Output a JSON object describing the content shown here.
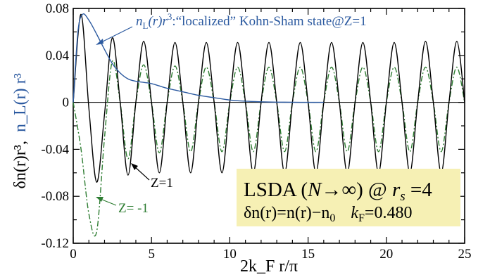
{
  "chart_data": {
    "type": "line",
    "xlabel": "2k_F r/π",
    "ylabel_black": "δn(r)r³,",
    "ylabel_blue": "n_L(r) r³",
    "xlim": [
      0,
      25
    ],
    "ylim": [
      -0.12,
      0.08
    ],
    "x_ticks": [
      0,
      5,
      10,
      15,
      20,
      25
    ],
    "x_tick_labels": [
      "0",
      "5",
      "10",
      "15",
      "20",
      "25"
    ],
    "y_ticks": [
      0.08,
      0.04,
      0,
      -0.04,
      -0.08,
      -0.12
    ],
    "y_tick_labels": [
      "0.08",
      "0.04",
      "0",
      "-0.04",
      "-0.08",
      "-0.12"
    ],
    "grid": false,
    "series": [
      {
        "name": "Z=1",
        "color": "#000000",
        "style": "solid",
        "x": [
          0,
          0.5,
          1,
          1.5,
          2,
          2.5,
          3,
          3.5,
          4,
          4.5,
          5,
          5.5,
          6,
          6.5,
          7,
          7.5,
          8,
          8.5,
          9,
          9.5,
          10,
          10.5,
          11,
          11.5,
          12,
          12.5,
          13,
          13.5,
          14,
          14.5,
          15,
          15.5,
          16,
          16.5,
          17,
          17.5,
          18,
          18.5,
          19,
          19.5,
          20,
          20.5,
          21,
          21.5,
          22,
          22.5,
          23,
          23.5,
          24,
          24.5,
          25
        ],
        "y": [
          0,
          0.075,
          -0.005,
          -0.068,
          -0.01,
          0.055,
          0.0,
          -0.062,
          0.0,
          0.052,
          0.0,
          -0.06,
          0.0,
          0.051,
          0.0,
          -0.06,
          0.0,
          0.051,
          0.0,
          -0.06,
          0.0,
          0.051,
          0.0,
          -0.06,
          0.0,
          0.051,
          0.0,
          -0.06,
          0.0,
          0.051,
          0.0,
          -0.06,
          0.0,
          0.051,
          0.0,
          -0.06,
          0.0,
          0.051,
          0.0,
          -0.06,
          0.0,
          0.051,
          0.0,
          -0.06,
          0.0,
          0.052,
          0.0,
          -0.06,
          0.0,
          0.052,
          0.0
        ]
      },
      {
        "name": "Z= -1",
        "color": "#2e7d32",
        "style": "dash-dot",
        "x": [
          0,
          0.5,
          1,
          1.5,
          2,
          2.5,
          3,
          3.5,
          4,
          4.5,
          5,
          5.5,
          6,
          6.5,
          7,
          7.5,
          8,
          8.5,
          9,
          9.5,
          10,
          10.5,
          11,
          11.5,
          12,
          12.5,
          13,
          13.5,
          14,
          14.5,
          15,
          15.5,
          16,
          16.5,
          17,
          17.5,
          18,
          18.5,
          19,
          19.5,
          20,
          20.5,
          21,
          21.5,
          22,
          22.5,
          23,
          23.5,
          24,
          24.5,
          25
        ],
        "y": [
          0,
          -0.04,
          -0.095,
          -0.11,
          -0.03,
          0.035,
          0.0,
          -0.048,
          0.0,
          0.032,
          0.0,
          -0.043,
          0.0,
          0.031,
          0.0,
          -0.042,
          0.0,
          0.03,
          0.0,
          -0.042,
          0.0,
          0.03,
          0.0,
          -0.042,
          0.0,
          0.03,
          0.0,
          -0.042,
          0.0,
          0.03,
          0.0,
          -0.042,
          0.0,
          0.03,
          0.0,
          -0.042,
          0.0,
          0.03,
          0.0,
          -0.042,
          0.0,
          0.03,
          0.0,
          -0.042,
          0.0,
          0.03,
          0.0,
          -0.042,
          0.0,
          0.03,
          0.0
        ]
      },
      {
        "name": "n_L(r)r³",
        "color": "#2c5aa0",
        "style": "solid",
        "x": [
          0,
          0.3,
          0.6,
          1,
          1.5,
          2,
          2.5,
          3,
          3.5,
          4,
          4.5,
          5,
          5.5,
          6,
          7,
          8,
          9,
          10,
          11,
          12,
          13,
          14,
          15,
          16
        ],
        "y": [
          0,
          0.06,
          0.075,
          0.07,
          0.058,
          0.045,
          0.033,
          0.025,
          0.02,
          0.018,
          0.017,
          0.016,
          0.014,
          0.012,
          0.009,
          0.006,
          0.004,
          0.002,
          0.001,
          0.0005,
          0.0002,
          0.0001,
          0,
          0
        ]
      }
    ],
    "annotations": {
      "blue_label_main": "n",
      "blue_label_sub": "L",
      "blue_label_rest": "(r)r",
      "blue_label_sup": "3",
      "blue_label_text": ":“localized” Kohn-Sham state@Z=1",
      "z_pos_label": "Z=1",
      "z_neg_label": "Z= -1"
    },
    "info_box": {
      "line1_a": "LSDA (",
      "line1_N": "N",
      "line1_arrow": "→∞) @ ",
      "line1_r": "r",
      "line1_s": "s",
      "line1_eq": " =4",
      "line2_a": "δn(r)=n(r)−n",
      "line2_sub0": "0",
      "line2_k": "k",
      "line2_F": "F",
      "line2_val": "=0.480"
    }
  }
}
